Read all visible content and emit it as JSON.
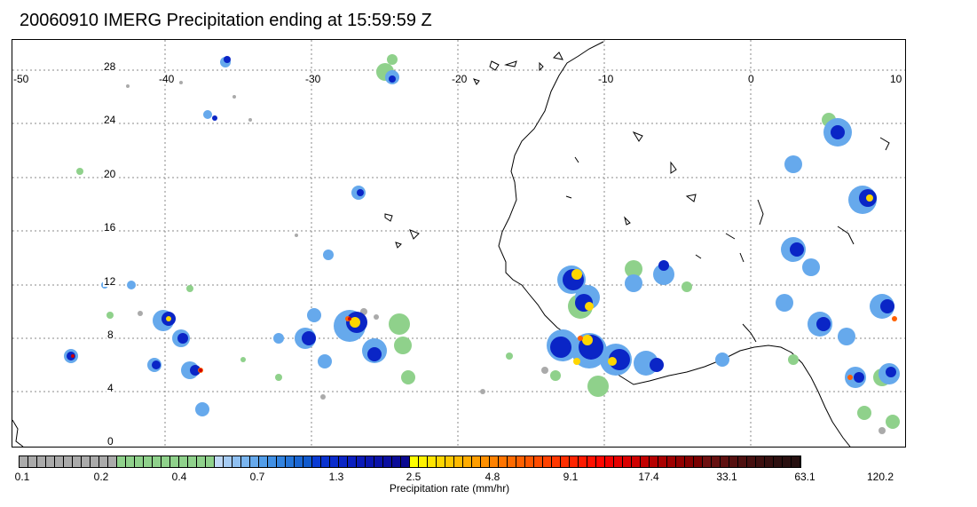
{
  "title": "20060910 IMERG Precipitation ending at 15:59:59 Z",
  "map": {
    "lon_labels": [
      "-50",
      "-40",
      "-30",
      "-20",
      "-10",
      "0",
      "10"
    ],
    "lat_labels": [
      "28",
      "24",
      "20",
      "16",
      "12",
      "8",
      "4",
      "0"
    ]
  },
  "colorbar": {
    "title": "Precipitation rate (mm/hr)",
    "tick_labels": [
      "0.1",
      "0.2",
      "0.4",
      "0.7",
      "1.3",
      "2.5",
      "4.8",
      "9.1",
      "17.4",
      "33.1",
      "63.1",
      "120.2"
    ],
    "colors": [
      "#aaaaaa",
      "#aaaaaa",
      "#aaaaaa",
      "#aaaaaa",
      "#aaaaaa",
      "#aaaaaa",
      "#aaaaaa",
      "#aaaaaa",
      "#aaaaaa",
      "#aaaaaa",
      "#aaaaaa",
      "#8fd18b",
      "#8fd18b",
      "#8fd18b",
      "#8fd18b",
      "#8fd18b",
      "#8fd18b",
      "#8fd18b",
      "#8fd18b",
      "#8fd18b",
      "#8fd18b",
      "#8fd18b",
      "#bfd8f5",
      "#a6ccf4",
      "#8fc0f2",
      "#7ab5ef",
      "#66a9ec",
      "#529de8",
      "#4190e4",
      "#3283df",
      "#2575d9",
      "#1a66d3",
      "#105ace",
      "#0a3bd4",
      "#0a33d0",
      "#0a2ccc",
      "#0a25c6",
      "#0a1fc0",
      "#0a1ab8",
      "#0a16b0",
      "#0a12a8",
      "#0a0ea0",
      "#0a0b98",
      "#0a0890",
      "#ffff00",
      "#fff200",
      "#ffe400",
      "#ffd600",
      "#ffc800",
      "#ffba00",
      "#ffac00",
      "#ff9e00",
      "#ff9000",
      "#ff8200",
      "#ff7400",
      "#ff6a00",
      "#ff6000",
      "#ff5600",
      "#ff4c00",
      "#ff4200",
      "#ff3800",
      "#ff2e00",
      "#ff2400",
      "#ff1a00",
      "#ff1000",
      "#ff0600",
      "#f20000",
      "#e60000",
      "#da0000",
      "#ce0000",
      "#c20000",
      "#b60000",
      "#aa0000",
      "#9e0000",
      "#920000",
      "#860000",
      "#7a0000",
      "#6e1010",
      "#661010",
      "#5e1010",
      "#561010",
      "#4e1010",
      "#461010",
      "#3e1010",
      "#361010",
      "#2e1010",
      "#2a1010",
      "#261010"
    ]
  }
}
